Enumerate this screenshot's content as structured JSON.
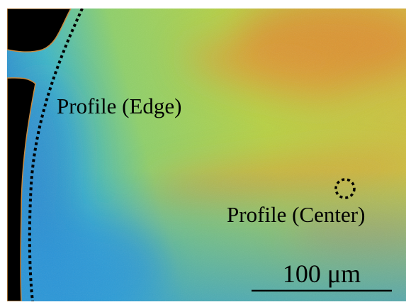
{
  "annotations": {
    "edge": "Profile (Edge)",
    "center": "Profile (Center)"
  },
  "scale_bar": {
    "label": "100 μm"
  }
}
